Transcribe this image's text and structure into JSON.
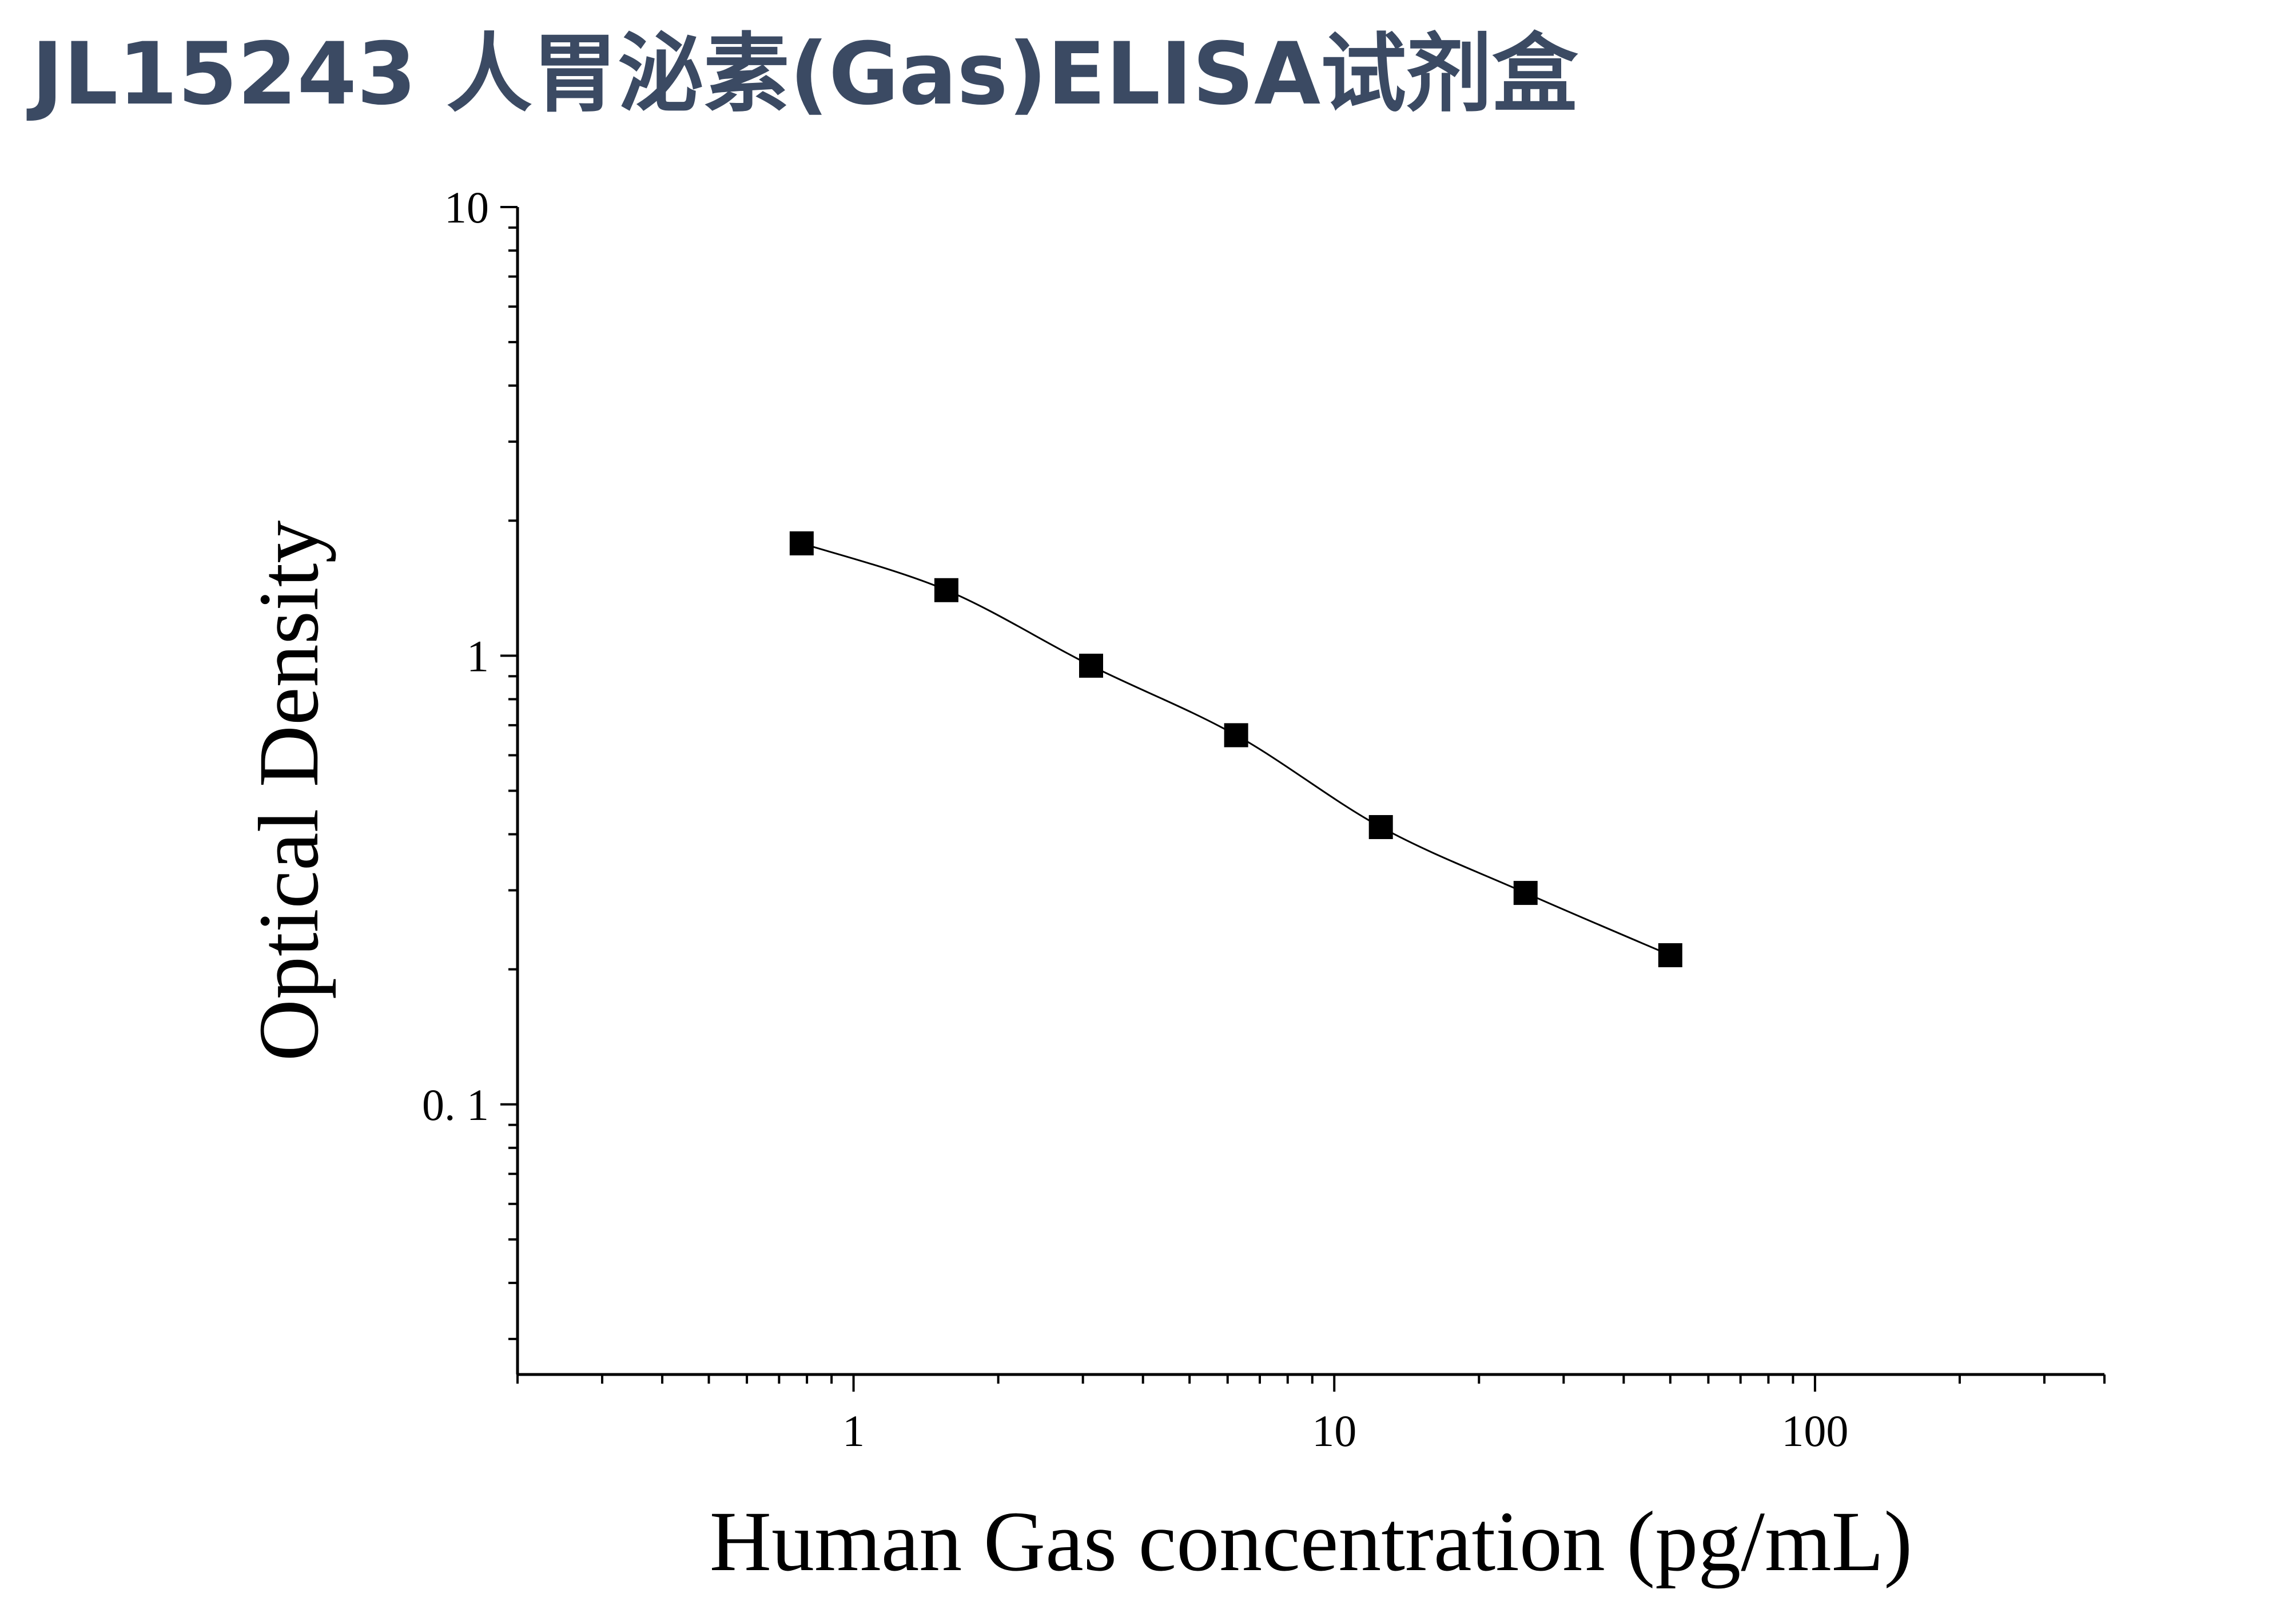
{
  "title": "JL15243 人胃泌素(Gas)ELISA试剂盒",
  "chart_data": {
    "type": "scatter",
    "title": "JL15243 人胃泌素(Gas)ELISA试剂盒",
    "xlabel": "Human Gas concentration (pg/mL)",
    "ylabel": "Optical Density",
    "xscale": "log",
    "yscale": "log",
    "xlim": [
      0.2,
      400
    ],
    "ylim": [
      0.025,
      10
    ],
    "x_ticks": [
      {
        "value": 1,
        "label": "1"
      },
      {
        "value": 10,
        "label": "10"
      },
      {
        "value": 100,
        "label": "100"
      }
    ],
    "y_ticks": [
      {
        "value": 10,
        "label": "10"
      },
      {
        "value": 1,
        "label": "1"
      },
      {
        "value": 0.1,
        "label": "0. 1"
      }
    ],
    "grid": false,
    "legend": "none",
    "marker": "square",
    "series": [
      {
        "x": [
          0.78,
          1.56,
          3.12,
          6.25,
          12.5,
          25,
          50
        ],
        "y": [
          1.78,
          1.4,
          0.95,
          0.665,
          0.415,
          0.296,
          0.215
        ]
      }
    ],
    "fit_curve": "smooth-through-points",
    "colors": {
      "marks": "#000000",
      "title": "#3b4a63"
    }
  }
}
